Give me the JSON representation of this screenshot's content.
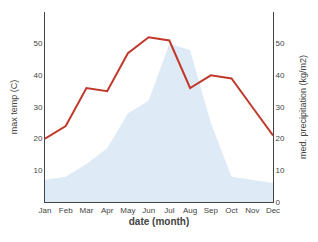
{
  "chart_data": {
    "type": "line",
    "x_label": "date (month)",
    "y_label": "max temp (C)",
    "y2_label": "med. precipitation (kg/m2)",
    "categories": [
      "Jan",
      "Feb",
      "Mar",
      "Apr",
      "May",
      "Jun",
      "Jul",
      "Aug",
      "Sep",
      "Oct",
      "Nov",
      "Dec"
    ],
    "series": [
      {
        "type": "line",
        "color": "#c0392b",
        "values": [
          20,
          24,
          36,
          35,
          47,
          52,
          51,
          36,
          40,
          39,
          30,
          21
        ]
      },
      {
        "type": "area",
        "color": "#c5d8f0",
        "axis": "y2",
        "values": [
          7,
          8,
          12,
          17,
          28,
          32,
          50,
          48,
          25,
          8,
          7,
          6
        ]
      }
    ],
    "ylim": [
      0,
      60
    ],
    "yticks": [
      10,
      20,
      30,
      40,
      50
    ],
    "y2lim": [
      0,
      60
    ],
    "y2ticks": [
      0,
      10,
      20,
      30,
      40,
      50
    ],
    "grid": false
  }
}
